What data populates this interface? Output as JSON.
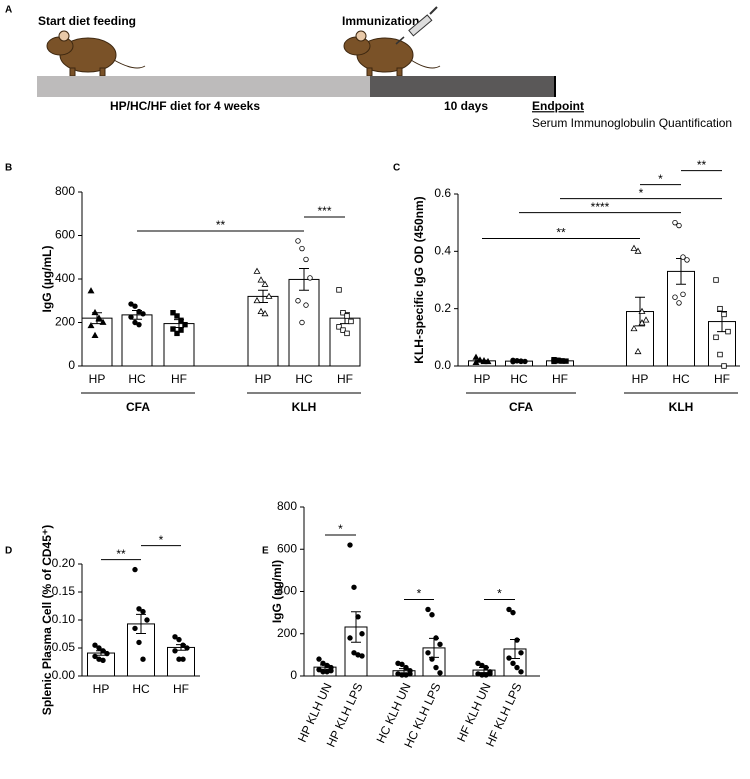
{
  "timeline": {
    "panel_label": "A",
    "start_label": "Start diet feeding",
    "immunization_label": "Immunization",
    "diet_label": "HP/HC/HF diet for 4 weeks",
    "interval_label": "10 days",
    "endpoint_label": "Endpoint",
    "endpoint_detail": "Serum Immunoglobulin Quantification"
  },
  "chart_data": [
    {
      "type": "bar",
      "panel_label": "B",
      "ylabel": "IgG (µg/mL)",
      "ylim": [
        0,
        800
      ],
      "yticks": [
        0,
        200,
        400,
        600,
        800
      ],
      "categories": [
        "HP",
        "HC",
        "HF",
        "HP",
        "HC",
        "HF"
      ],
      "values": [
        220,
        235,
        195,
        320,
        398,
        220
      ],
      "errors": [
        25,
        20,
        18,
        28,
        50,
        25
      ],
      "points": [
        [
          345,
          245,
          220,
          200,
          185,
          140,
          215
        ],
        [
          285,
          275,
          250,
          240,
          225,
          200,
          190
        ],
        [
          245,
          230,
          210,
          190,
          170,
          150,
          165
        ],
        [
          435,
          395,
          375,
          320,
          300,
          250,
          240
        ],
        [
          575,
          540,
          490,
          405,
          300,
          200,
          280
        ],
        [
          350,
          245,
          230,
          205,
          180,
          165,
          150
        ]
      ],
      "markers": [
        "triangle",
        "circle",
        "square",
        "triangle",
        "circle",
        "square"
      ],
      "filled": [
        true,
        true,
        true,
        false,
        false,
        false
      ],
      "groups": [
        {
          "label": "CFA",
          "span": [
            0,
            2
          ]
        },
        {
          "label": "KLH",
          "span": [
            3,
            5
          ]
        }
      ],
      "brackets": [
        {
          "label": "**",
          "span": [
            1,
            4
          ]
        },
        {
          "label": "***",
          "span": [
            4,
            5
          ]
        }
      ]
    },
    {
      "type": "bar",
      "panel_label": "C",
      "ylabel": "KLH-specific IgG OD (450nm)",
      "ylim": [
        0,
        0.6
      ],
      "yticks": [
        {
          "value": 0,
          "label": "0.0"
        },
        0.2,
        0.4,
        0.6
      ],
      "categories": [
        "HP",
        "HC",
        "HF",
        "HP",
        "HC",
        "HF"
      ],
      "values": [
        0.018,
        0.017,
        0.018,
        0.19,
        0.33,
        0.155
      ],
      "errors": [
        0.002,
        0.002,
        0.002,
        0.05,
        0.045,
        0.035
      ],
      "points": [
        [
          0.03,
          0.02,
          0.018,
          0.015,
          0.012,
          0.02,
          0.015
        ],
        [
          0.02,
          0.018,
          0.017,
          0.016,
          0.015,
          0.018,
          0.016
        ],
        [
          0.022,
          0.02,
          0.018,
          0.017,
          0.016,
          0.018,
          0.017
        ],
        [
          0.41,
          0.4,
          0.19,
          0.16,
          0.13,
          0.05,
          0.15
        ],
        [
          0.5,
          0.49,
          0.38,
          0.37,
          0.24,
          0.22,
          0.25
        ],
        [
          0.3,
          0.2,
          0.18,
          0.12,
          0.1,
          0.04,
          0.0
        ]
      ],
      "markers": [
        "triangle",
        "circle",
        "square",
        "triangle",
        "circle",
        "square"
      ],
      "filled": [
        true,
        true,
        true,
        false,
        false,
        false
      ],
      "groups": [
        {
          "label": "CFA",
          "span": [
            0,
            2
          ]
        },
        {
          "label": "KLH",
          "span": [
            3,
            5
          ]
        }
      ],
      "brackets": [
        {
          "label": "**",
          "span": [
            0,
            3
          ]
        },
        {
          "label": "****",
          "span": [
            1,
            4
          ]
        },
        {
          "label": "*",
          "span": [
            2,
            5
          ]
        },
        {
          "label": "*",
          "span": [
            3,
            4
          ]
        },
        {
          "label": "**",
          "span": [
            4,
            5
          ]
        }
      ]
    },
    {
      "type": "bar",
      "panel_label": "D",
      "ylabel": "Splenic Plasma Cell (% of CD45⁺)",
      "ylim": [
        0,
        0.2
      ],
      "yticks": [
        {
          "value": 0,
          "label": "0.00"
        },
        0.05,
        {
          "value": 0.1,
          "label": "0.10"
        },
        0.15,
        {
          "value": 0.2,
          "label": "0.20"
        }
      ],
      "categories": [
        "HP",
        "HC",
        "HF"
      ],
      "values": [
        0.041,
        0.093,
        0.051
      ],
      "errors": [
        0.004,
        0.017,
        0.005
      ],
      "points": [
        [
          0.055,
          0.05,
          0.045,
          0.04,
          0.035,
          0.03,
          0.028
        ],
        [
          0.19,
          0.12,
          0.115,
          0.1,
          0.085,
          0.06,
          0.03
        ],
        [
          0.07,
          0.065,
          0.055,
          0.05,
          0.045,
          0.03,
          0.03
        ]
      ],
      "markers": [
        "circle",
        "circle",
        "circle"
      ],
      "filled": [
        true,
        true,
        true
      ],
      "brackets": [
        {
          "label": "**",
          "span": [
            0,
            1
          ]
        },
        {
          "label": "*",
          "span": [
            1,
            2
          ]
        }
      ]
    },
    {
      "type": "bar",
      "panel_label": "E",
      "ylabel": "IgG (ng/ml)",
      "ylim": [
        0,
        800
      ],
      "yticks": [
        0,
        200,
        400,
        600,
        800
      ],
      "categories": [
        "HP KLH UN",
        "HP KLH LPS",
        "HC KLH UN",
        "HC KLH LPS",
        "HF KLH UN",
        "HF KLH LPS"
      ],
      "values": [
        42,
        232,
        25,
        133,
        28,
        128
      ],
      "errors": [
        10,
        72,
        10,
        45,
        12,
        45
      ],
      "points": [
        [
          80,
          60,
          50,
          40,
          30,
          20,
          20,
          25
        ],
        [
          620,
          420,
          280,
          200,
          180,
          110,
          100,
          95
        ],
        [
          60,
          55,
          40,
          25,
          10,
          5,
          5,
          10
        ],
        [
          315,
          290,
          180,
          150,
          110,
          80,
          40,
          15
        ],
        [
          60,
          50,
          40,
          20,
          10,
          5,
          5,
          10
        ],
        [
          315,
          300,
          170,
          110,
          85,
          60,
          40,
          20
        ]
      ],
      "markers": [
        "circle",
        "circle",
        "circle",
        "circle",
        "circle",
        "circle"
      ],
      "filled": [
        true,
        true,
        true,
        true,
        true,
        true
      ],
      "brackets": [
        {
          "label": "*",
          "span": [
            0,
            1
          ]
        },
        {
          "label": "*",
          "span": [
            2,
            3
          ]
        },
        {
          "label": "*",
          "span": [
            4,
            5
          ]
        }
      ]
    }
  ]
}
